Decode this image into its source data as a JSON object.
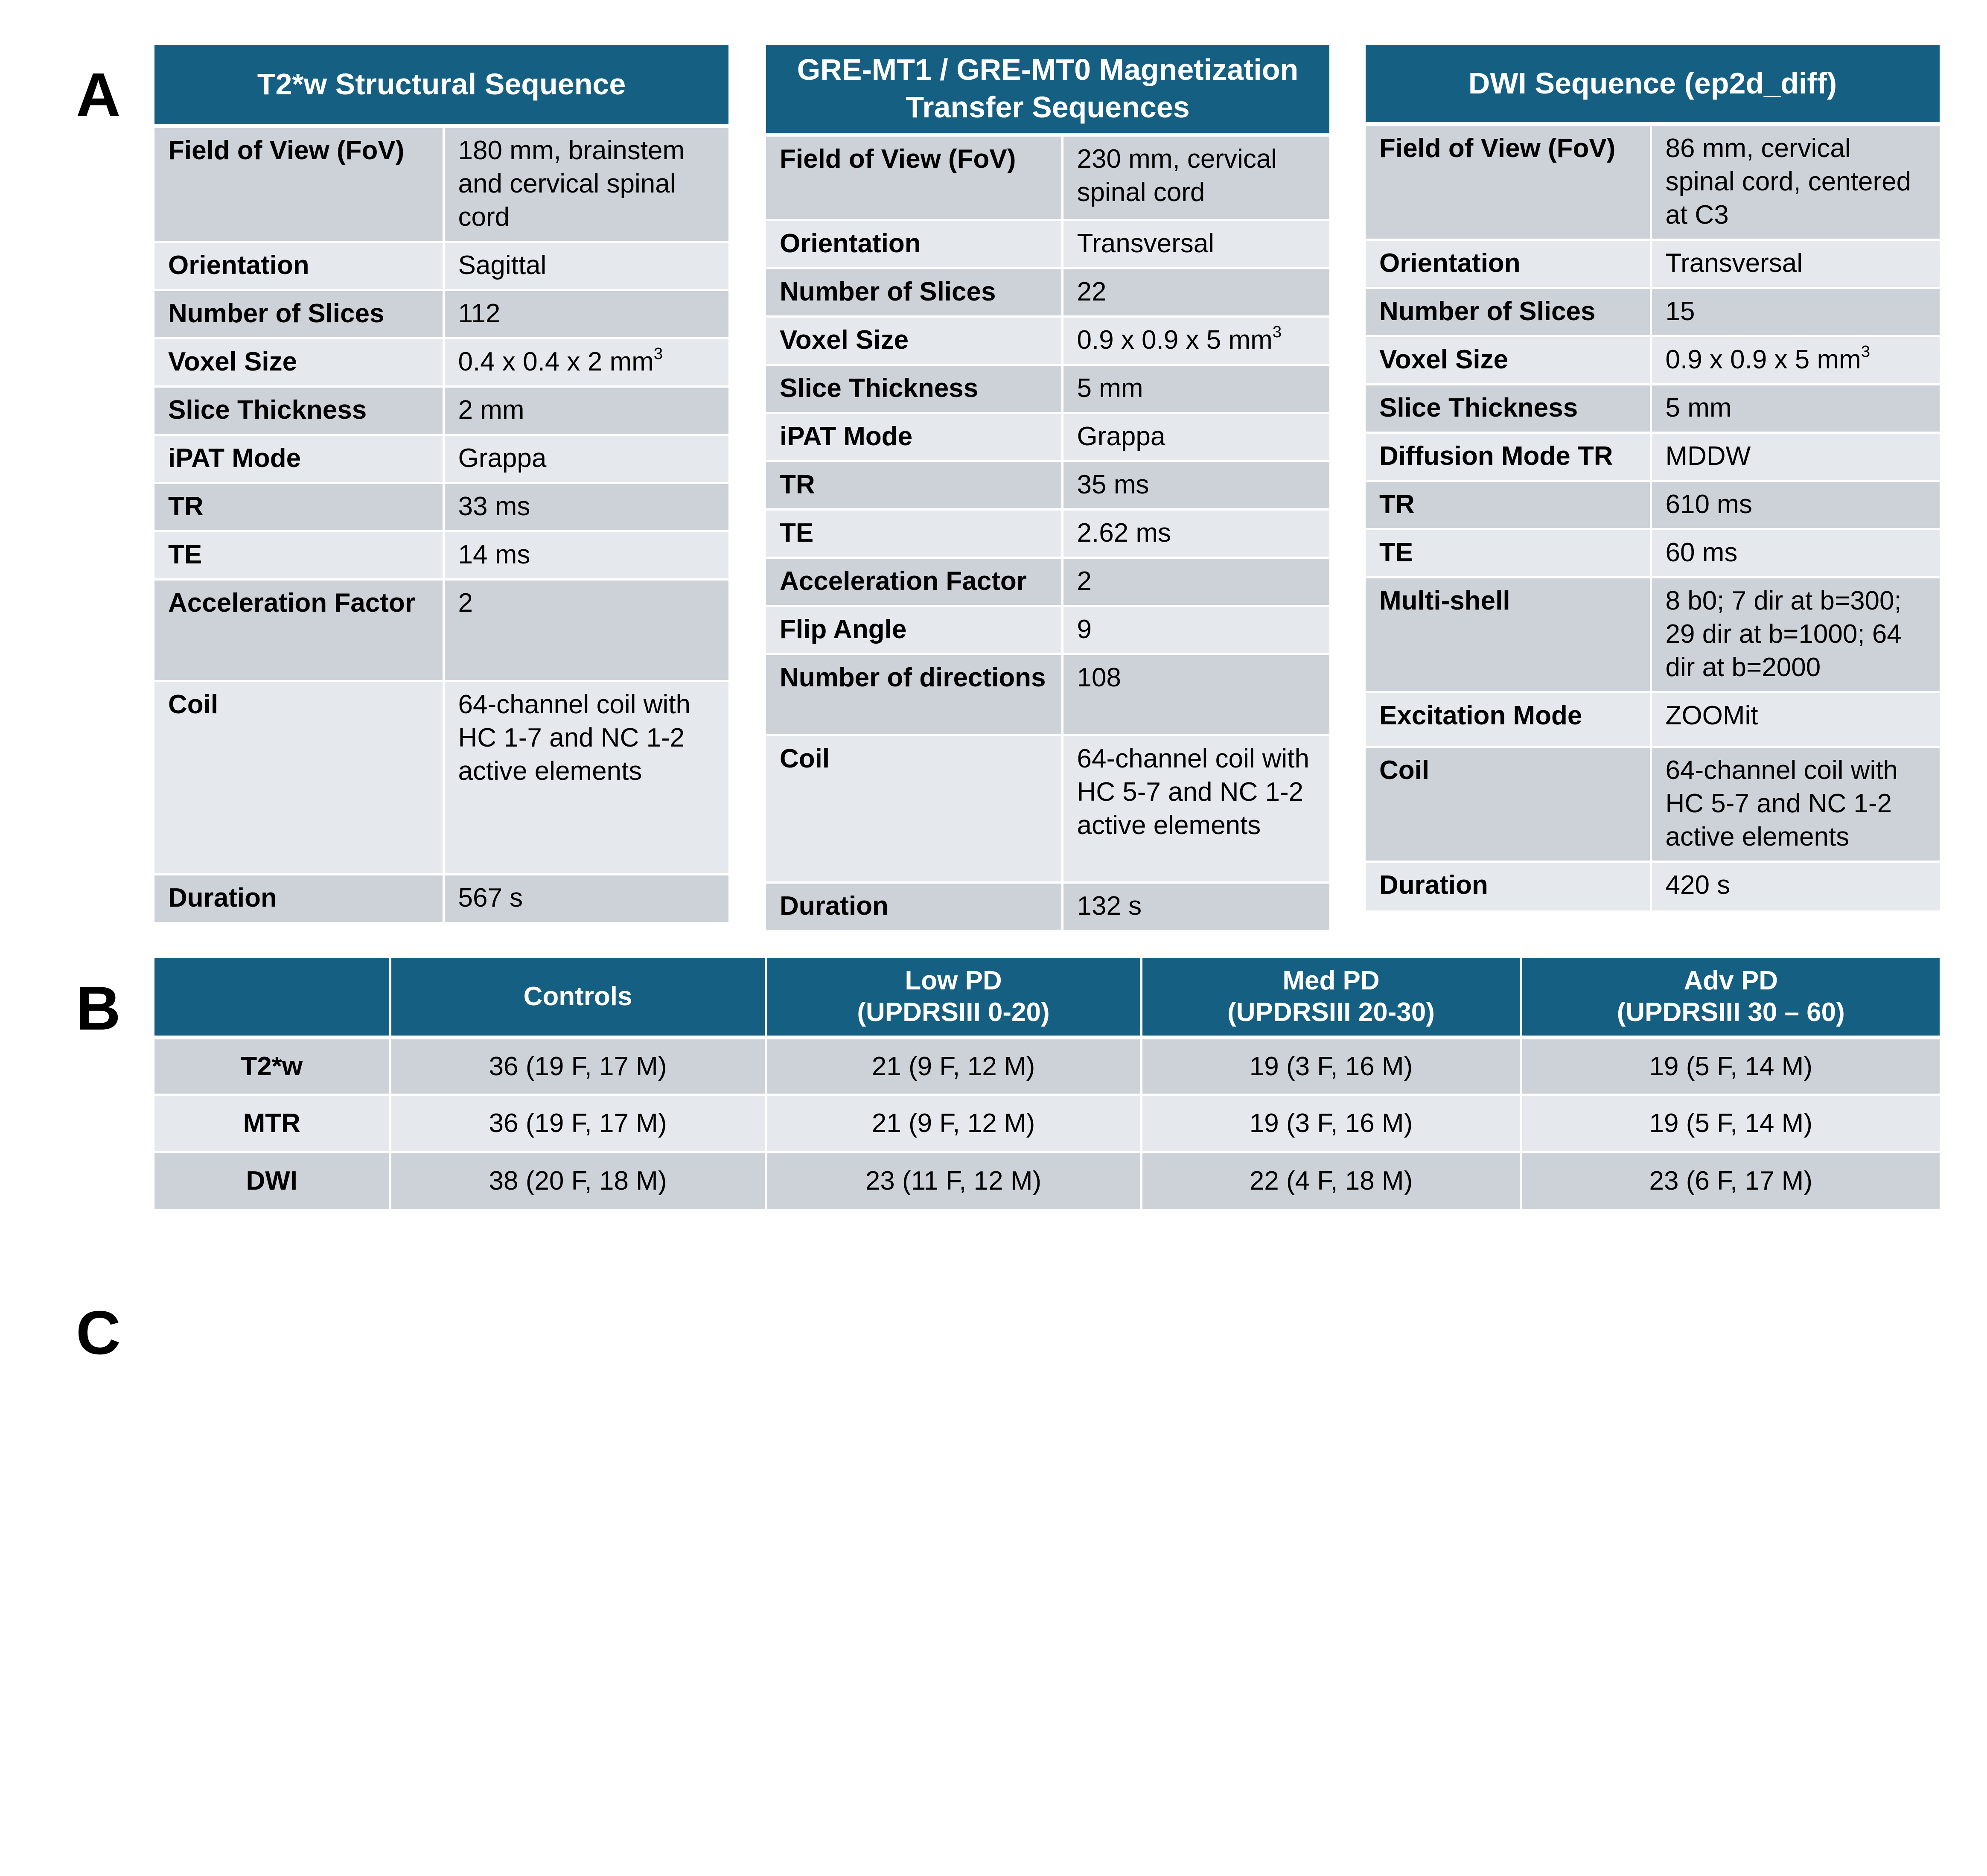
{
  "panels": {
    "a": "A",
    "b": "B",
    "c": "C"
  },
  "tables_a": [
    {
      "title": "T2*w Structural Sequence",
      "rows": [
        {
          "param": "Field of View (FoV)",
          "value": "180 mm, brainstem and cervical spinal cord"
        },
        {
          "param": "Orientation",
          "value": "Sagittal"
        },
        {
          "param": "Number of Slices",
          "value": "112"
        },
        {
          "param": "Voxel Size",
          "value": "0.4 x 0.4 x 2 mm",
          "sup": "3"
        },
        {
          "param": "Slice Thickness",
          "value": "2 mm"
        },
        {
          "param": "iPAT Mode",
          "value": "Grappa"
        },
        {
          "param": "TR",
          "value": "33 ms"
        },
        {
          "param": "TE",
          "value": "14 ms"
        },
        {
          "param": "Acceleration Factor",
          "value": "2"
        },
        {
          "param": "Coil",
          "value": "64-channel coil with HC 1-7 and NC 1-2 active elements"
        },
        {
          "param": "Duration",
          "value": "567 s"
        }
      ]
    },
    {
      "title": "GRE-MT1 / GRE-MT0 Magnetization Transfer Sequences",
      "rows": [
        {
          "param": "Field of View (FoV)",
          "value": "230 mm, cervical spinal cord"
        },
        {
          "param": "Orientation",
          "value": "Transversal"
        },
        {
          "param": "Number of Slices",
          "value": "22"
        },
        {
          "param": "Voxel Size",
          "value": "0.9 x 0.9 x 5 mm",
          "sup": "3"
        },
        {
          "param": "Slice Thickness",
          "value": "5 mm"
        },
        {
          "param": "iPAT Mode",
          "value": "Grappa"
        },
        {
          "param": "TR",
          "value": "35 ms"
        },
        {
          "param": "TE",
          "value": "2.62 ms"
        },
        {
          "param": "Acceleration Factor",
          "value": "2"
        },
        {
          "param": "Flip Angle",
          "value": "9"
        },
        {
          "param": "Number of directions",
          "value": "108"
        },
        {
          "param": "Coil",
          "value": "64-channel coil with HC 5-7 and NC 1-2 active elements"
        },
        {
          "param": "Duration",
          "value": "132 s"
        }
      ]
    },
    {
      "title": "DWI Sequence (ep2d_diff)",
      "rows": [
        {
          "param": "Field of View (FoV)",
          "value": "86 mm, cervical spinal cord, centered at C3"
        },
        {
          "param": "Orientation",
          "value": "Transversal"
        },
        {
          "param": "Number of Slices",
          "value": "15"
        },
        {
          "param": "Voxel Size",
          "value": "0.9 x 0.9 x 5 mm",
          "sup": "3"
        },
        {
          "param": "Slice Thickness",
          "value": "5 mm"
        },
        {
          "param": "Diffusion Mode TR",
          "value": "MDDW"
        },
        {
          "param": "TR",
          "value": "610 ms"
        },
        {
          "param": "TE",
          "value": "60 ms"
        },
        {
          "param": "Multi-shell",
          "value": "8 b0; 7 dir at b=300; 29 dir at b=1000; 64 dir at b=2000"
        },
        {
          "param": "Excitation Mode",
          "value": "ZOOMit"
        },
        {
          "param": "Coil",
          "value": "64-channel coil with HC 5-7 and NC 1-2 active elements"
        },
        {
          "param": "Duration",
          "value": "420 s"
        }
      ]
    }
  ],
  "table_b": {
    "headers": [
      {
        "line1": "",
        "line2": ""
      },
      {
        "line1": "Controls",
        "line2": ""
      },
      {
        "line1": "Low PD",
        "line2": "(UPDRSIII 0-20)"
      },
      {
        "line1": "Med PD",
        "line2": "(UPDRSIII 20-30)"
      },
      {
        "line1": "Adv PD",
        "line2": "(UPDRSIII  30 – 60)"
      }
    ],
    "rows": [
      {
        "label": "T2*w",
        "cells": [
          "36 (19 F, 17 M)",
          "21 (9 F, 12 M)",
          "19 (3 F, 16 M)",
          "19 (5 F, 14 M)"
        ]
      },
      {
        "label": "MTR",
        "cells": [
          "36 (19 F, 17 M)",
          "21 (9 F, 12 M)",
          "19 (3 F, 16 M)",
          "19 (5 F, 14 M)"
        ]
      },
      {
        "label": "DWI",
        "cells": [
          "38 (20 F, 18 M)",
          "23 (11 F, 12 M)",
          "22 (4 F, 18 M)",
          "23 (6 F, 17 M)"
        ]
      }
    ]
  },
  "colors": {
    "header_bg": "#155f82",
    "row_dark": "#cdd1d8",
    "row_light": "#e5e8ec"
  }
}
